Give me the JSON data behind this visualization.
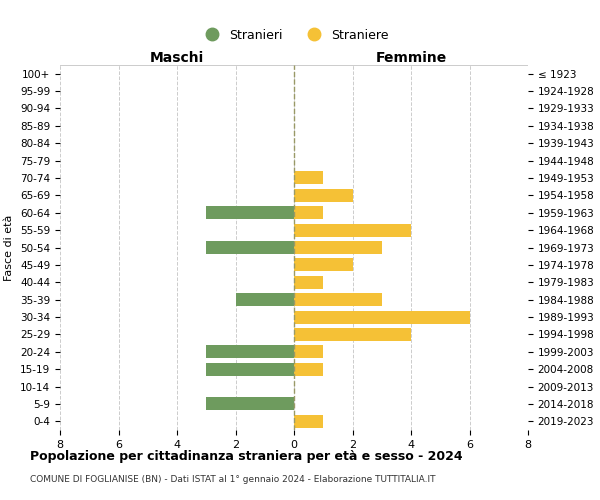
{
  "age_groups": [
    "100+",
    "95-99",
    "90-94",
    "85-89",
    "80-84",
    "75-79",
    "70-74",
    "65-69",
    "60-64",
    "55-59",
    "50-54",
    "45-49",
    "40-44",
    "35-39",
    "30-34",
    "25-29",
    "20-24",
    "15-19",
    "10-14",
    "5-9",
    "0-4"
  ],
  "birth_years": [
    "≤ 1923",
    "1924-1928",
    "1929-1933",
    "1934-1938",
    "1939-1943",
    "1944-1948",
    "1949-1953",
    "1954-1958",
    "1959-1963",
    "1964-1968",
    "1969-1973",
    "1974-1978",
    "1979-1983",
    "1984-1988",
    "1989-1993",
    "1994-1998",
    "1999-2003",
    "2004-2008",
    "2009-2013",
    "2014-2018",
    "2019-2023"
  ],
  "maschi": [
    0,
    0,
    0,
    0,
    0,
    0,
    0,
    0,
    3,
    0,
    3,
    0,
    0,
    2,
    0,
    0,
    3,
    3,
    0,
    3,
    0
  ],
  "femmine": [
    0,
    0,
    0,
    0,
    0,
    0,
    1,
    2,
    1,
    4,
    3,
    2,
    1,
    3,
    6,
    4,
    1,
    1,
    0,
    0,
    1
  ],
  "color_maschi": "#6e9b5e",
  "color_femmine": "#f5c136",
  "title": "Popolazione per cittadinanza straniera per età e sesso - 2024",
  "subtitle": "COMUNE DI FOGLIANISE (BN) - Dati ISTAT al 1° gennaio 2024 - Elaborazione TUTTITALIA.IT",
  "label_maschi": "Stranieri",
  "label_femmine": "Straniere",
  "xlabel_left": "Maschi",
  "xlabel_right": "Femmine",
  "ylabel_left": "Fasce di età",
  "xlim": 8,
  "background_color": "#ffffff",
  "grid_color": "#cccccc"
}
